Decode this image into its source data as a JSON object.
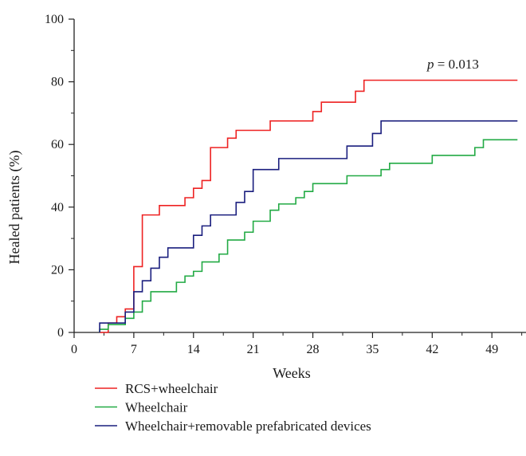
{
  "chart_data": {
    "type": "line",
    "step": true,
    "xlabel": "Weeks",
    "ylabel": "Healed patients (%)",
    "xlim": [
      0,
      53
    ],
    "ylim": [
      0,
      100
    ],
    "x_ticks": [
      0,
      7,
      14,
      21,
      28,
      35,
      42,
      49
    ],
    "y_ticks": [
      0,
      20,
      40,
      60,
      80,
      100
    ],
    "grid": false,
    "legend_position": "bottom-left",
    "annotation": {
      "italic": "p",
      "text": " = 0.013"
    },
    "series": [
      {
        "name": "RCS+wheelchair",
        "color": "#ee2222",
        "points": [
          [
            3,
            0
          ],
          [
            4,
            0
          ],
          [
            4,
            3
          ],
          [
            5,
            3
          ],
          [
            5,
            5
          ],
          [
            6,
            5
          ],
          [
            6,
            7.5
          ],
          [
            7,
            7.5
          ],
          [
            7,
            21
          ],
          [
            8,
            21
          ],
          [
            8,
            37.5
          ],
          [
            10,
            37.5
          ],
          [
            10,
            40.5
          ],
          [
            13,
            40.5
          ],
          [
            13,
            43
          ],
          [
            14,
            43
          ],
          [
            14,
            46
          ],
          [
            15,
            46
          ],
          [
            15,
            48.5
          ],
          [
            16,
            48.5
          ],
          [
            16,
            59
          ],
          [
            18,
            59
          ],
          [
            18,
            62
          ],
          [
            19,
            62
          ],
          [
            19,
            64.5
          ],
          [
            23,
            64.5
          ],
          [
            23,
            67.5
          ],
          [
            28,
            67.5
          ],
          [
            28,
            70.5
          ],
          [
            29,
            70.5
          ],
          [
            29,
            73.5
          ],
          [
            33,
            73.5
          ],
          [
            33,
            77
          ],
          [
            34,
            77
          ],
          [
            34,
            80.5
          ],
          [
            52,
            80.5
          ]
        ]
      },
      {
        "name": "Wheelchair",
        "color": "#22aa44",
        "points": [
          [
            3,
            0
          ],
          [
            3,
            1
          ],
          [
            4,
            1
          ],
          [
            4,
            2.5
          ],
          [
            6,
            2.5
          ],
          [
            6,
            4.5
          ],
          [
            7,
            4.5
          ],
          [
            7,
            6.5
          ],
          [
            8,
            6.5
          ],
          [
            8,
            10
          ],
          [
            9,
            10
          ],
          [
            9,
            13
          ],
          [
            12,
            13
          ],
          [
            12,
            16
          ],
          [
            13,
            16
          ],
          [
            13,
            18
          ],
          [
            14,
            18
          ],
          [
            14,
            19.5
          ],
          [
            15,
            19.5
          ],
          [
            15,
            22.5
          ],
          [
            17,
            22.5
          ],
          [
            17,
            25
          ],
          [
            18,
            25
          ],
          [
            18,
            29.5
          ],
          [
            20,
            29.5
          ],
          [
            20,
            32
          ],
          [
            21,
            32
          ],
          [
            21,
            35.5
          ],
          [
            23,
            35.5
          ],
          [
            23,
            39
          ],
          [
            24,
            39
          ],
          [
            24,
            41
          ],
          [
            26,
            41
          ],
          [
            26,
            43
          ],
          [
            27,
            43
          ],
          [
            27,
            45
          ],
          [
            28,
            45
          ],
          [
            28,
            47.5
          ],
          [
            32,
            47.5
          ],
          [
            32,
            50
          ],
          [
            36,
            50
          ],
          [
            36,
            52
          ],
          [
            37,
            52
          ],
          [
            37,
            54
          ],
          [
            42,
            54
          ],
          [
            42,
            56.5
          ],
          [
            47,
            56.5
          ],
          [
            47,
            59
          ],
          [
            48,
            59
          ],
          [
            48,
            61.5
          ],
          [
            52,
            61.5
          ]
        ]
      },
      {
        "name": "Wheelchair+removable prefabricated devices",
        "color": "#1a1e7e",
        "points": [
          [
            3,
            0
          ],
          [
            3,
            3
          ],
          [
            6,
            3
          ],
          [
            6,
            6.5
          ],
          [
            7,
            6.5
          ],
          [
            7,
            13
          ],
          [
            8,
            13
          ],
          [
            8,
            16.5
          ],
          [
            9,
            16.5
          ],
          [
            9,
            20.5
          ],
          [
            10,
            20.5
          ],
          [
            10,
            24
          ],
          [
            11,
            24
          ],
          [
            11,
            27
          ],
          [
            14,
            27
          ],
          [
            14,
            31
          ],
          [
            15,
            31
          ],
          [
            15,
            34
          ],
          [
            16,
            34
          ],
          [
            16,
            37.5
          ],
          [
            19,
            37.5
          ],
          [
            19,
            41.5
          ],
          [
            20,
            41.5
          ],
          [
            20,
            45
          ],
          [
            21,
            45
          ],
          [
            21,
            52
          ],
          [
            24,
            52
          ],
          [
            24,
            55.5
          ],
          [
            32,
            55.5
          ],
          [
            32,
            59.5
          ],
          [
            35,
            59.5
          ],
          [
            35,
            63.5
          ],
          [
            36,
            63.5
          ],
          [
            36,
            67.5
          ],
          [
            52,
            67.5
          ]
        ]
      }
    ]
  }
}
